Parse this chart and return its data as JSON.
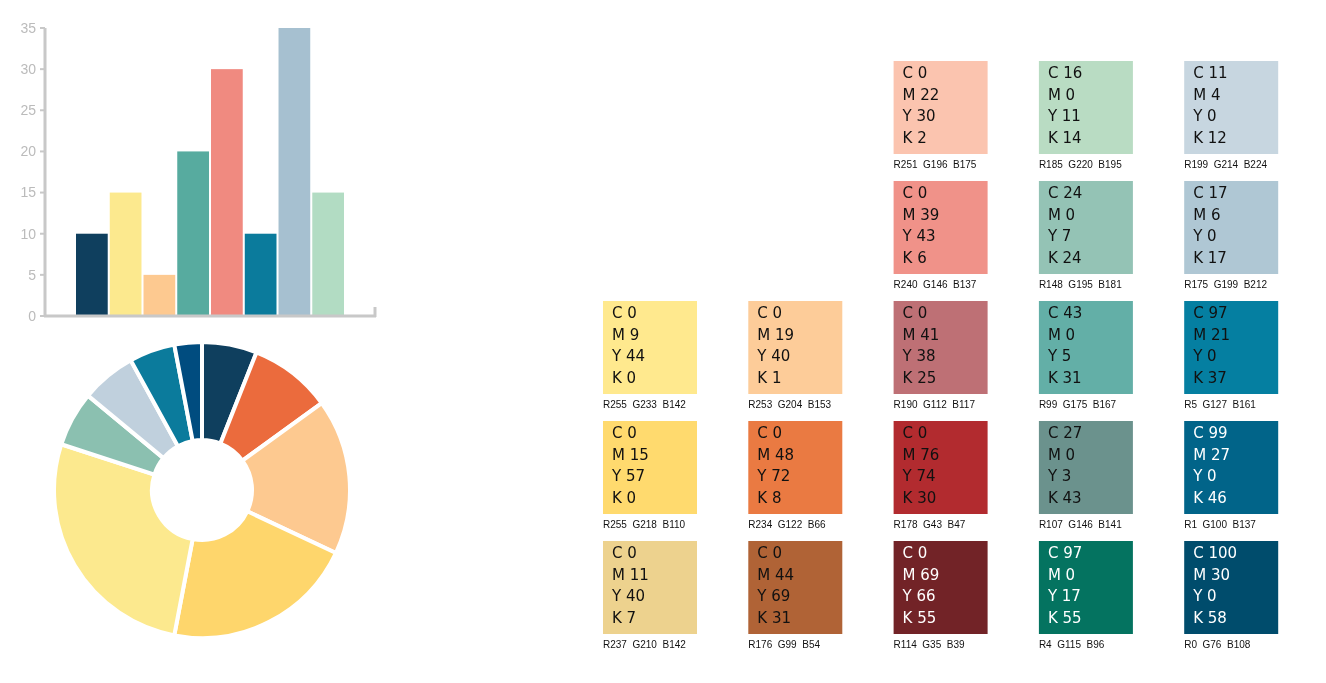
{
  "chart_data": [
    {
      "type": "bar",
      "categories": [
        null,
        null,
        null,
        null,
        null,
        null,
        null,
        null
      ],
      "values": [
        10,
        15,
        5,
        20,
        30,
        10,
        35,
        15
      ],
      "colors": [
        "#0f3f5e",
        "#fce98e",
        "#fdc990",
        "#57ab9f",
        "#f08a80",
        "#0b7b9c",
        "#a6c0d0",
        "#b2dcc3"
      ],
      "ylim": [
        0,
        35
      ],
      "yticks": [
        0,
        5,
        10,
        15,
        20,
        25,
        30,
        35
      ],
      "tick_labels": "y"
    },
    {
      "type": "donut",
      "categories": [
        null,
        null,
        null,
        null,
        null,
        null,
        null,
        null,
        null
      ],
      "values": [
        6,
        9,
        17,
        21,
        27,
        6,
        6,
        5,
        3
      ],
      "colors": [
        "#0f3f5e",
        "#eb6b3d",
        "#fdc990",
        "#fed66c",
        "#fce98e",
        "#8bc0b0",
        "#c0d0dd",
        "#0b7b9c",
        "#004c7f"
      ]
    },
    {
      "type": "other",
      "categories": [
        null,
        null,
        "R251  G196  B175",
        "R185  G220  B195",
        "R199  G214  B224",
        null,
        null,
        "R240  G146  B137",
        "R148  G195  B181",
        "R175  G199  B212",
        "R255  G233  B142",
        "R253  G204  B153",
        "R190  G112  B117",
        "R99  G175  B167",
        "R5  G127  B161",
        "R255  G218  B110",
        "R234  G122  B66",
        "R178  G43  B47",
        "R107  G146  B141",
        "R1  G100  B137",
        "R237  G210  B142",
        "R176  G99  B54",
        "R114  G35  B39",
        "R4  G115  B96",
        "R0  G76  B108"
      ],
      "colors": [
        null,
        null,
        "#fbc4af",
        "#b9dcc3",
        "#c7d6e0",
        null,
        null,
        "#f09289",
        "#94c3b5",
        "#afc7d4",
        "#ffe98e",
        "#fdcc99",
        "#be7075",
        "#63afa7",
        "#057fa1",
        "#ffda6e",
        "#ea7a42",
        "#b22b2f",
        "#6b928d",
        "#016489",
        "#edd28e",
        "#b06336",
        "#722327",
        "#047360",
        "#004c6c"
      ],
      "annotations": [
        "C 0",
        "M 22",
        "Y 30",
        "K 2",
        "C 16",
        "M 0",
        "Y 11",
        "K 14",
        "C 11",
        "M 4",
        "Y 0",
        "K 12",
        "C 0",
        "M 39",
        "Y 43",
        "K 6",
        "C 24",
        "M 0",
        "Y 7",
        "K 24",
        "C 17",
        "M 6",
        "Y 0",
        "K 17",
        "C 0",
        "M 9",
        "Y 44",
        "K 0",
        "C 0",
        "M 19",
        "Y 40",
        "K 1",
        "C 0",
        "M 41",
        "Y 38",
        "K 25",
        "C 43",
        "M 0",
        "Y 5",
        "K 31",
        "C 97",
        "M 21",
        "Y 0",
        "K 37",
        "C 0",
        "M 15",
        "Y 57",
        "K 0",
        "C 0",
        "M 48",
        "Y 72",
        "K 8",
        "C 0",
        "M 76",
        "Y 74",
        "K 30",
        "C 27",
        "M 0",
        "Y 3",
        "K 43",
        "C 99",
        "M 27",
        "Y 0",
        "K 46",
        "C 0",
        "M 11",
        "Y 40",
        "K 7",
        "C 0",
        "M 44",
        "Y 69",
        "K 31",
        "C 0",
        "M 69",
        "Y 66",
        "K 55",
        "C 97",
        "M 0",
        "Y 17",
        "K 55",
        "C 100",
        "M 30",
        "Y 0",
        "K 58"
      ]
    }
  ]
}
